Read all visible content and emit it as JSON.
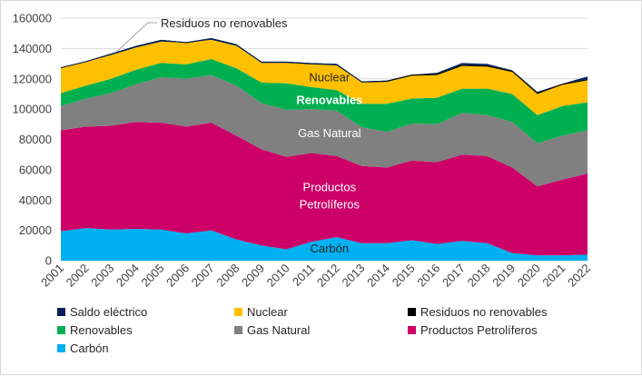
{
  "chart_data": {
    "type": "area",
    "stacked": true,
    "x": [
      2001,
      2002,
      2003,
      2004,
      2005,
      2006,
      2007,
      2008,
      2009,
      2010,
      2011,
      2012,
      2013,
      2014,
      2015,
      2016,
      2017,
      2018,
      2019,
      2020,
      2021,
      2022
    ],
    "x_tick_labels": [
      "2001",
      "2002",
      "2003",
      "2004",
      "2005",
      "2006",
      "2007",
      "2008",
      "2009",
      "2010",
      "2011",
      "2012",
      "2013",
      "2014",
      "2015",
      "2016",
      "2017",
      "2018",
      "2019",
      "2020",
      "2021",
      "2022"
    ],
    "ylim": [
      0,
      160000
    ],
    "y_ticks": [
      0,
      20000,
      40000,
      60000,
      80000,
      100000,
      120000,
      140000,
      160000
    ],
    "y_tick_labels": [
      "0",
      "20000",
      "40000",
      "60000",
      "80000",
      "100000",
      "120000",
      "140000",
      "160000"
    ],
    "gridlines": true,
    "legend_position": "bottom",
    "series": [
      {
        "name": "Carbón",
        "color": "#00b0f0",
        "values": [
          19500,
          21500,
          20500,
          21000,
          20500,
          18000,
          20000,
          14000,
          10000,
          7500,
          12500,
          15500,
          11500,
          11500,
          13500,
          11000,
          13000,
          11500,
          5000,
          3500,
          3500,
          4000
        ]
      },
      {
        "name": "Productos Petrolíferos",
        "color": "#cc0066",
        "values": [
          66500,
          67000,
          68500,
          70500,
          70500,
          70500,
          71000,
          68500,
          63500,
          61000,
          58500,
          53500,
          51000,
          50000,
          52500,
          54000,
          57000,
          57500,
          56500,
          45500,
          50000,
          53500
        ]
      },
      {
        "name": "Gas Natural",
        "color": "#808080",
        "values": [
          16000,
          18500,
          21500,
          25000,
          30000,
          31500,
          31500,
          33000,
          30500,
          31000,
          29000,
          30000,
          25500,
          23500,
          24500,
          25000,
          27500,
          27000,
          30000,
          28500,
          29000,
          28500
        ]
      },
      {
        "name": "Renovables",
        "color": "#00b050",
        "values": [
          8500,
          8500,
          9500,
          9500,
          9500,
          9500,
          10500,
          11500,
          13500,
          17500,
          14500,
          13500,
          15500,
          18500,
          16500,
          17500,
          16000,
          17500,
          18500,
          18500,
          19500,
          18500
        ]
      },
      {
        "name": "Nuclear",
        "color": "#ffc000",
        "values": [
          16500,
          15500,
          16000,
          15000,
          14500,
          14000,
          13000,
          15000,
          13000,
          13500,
          15000,
          16500,
          14000,
          14500,
          15000,
          15000,
          15000,
          14500,
          14500,
          14000,
          14000,
          14500
        ]
      },
      {
        "name": "Residuos no renovables",
        "color": "#000000",
        "values": [
          600,
          600,
          600,
          700,
          700,
          700,
          800,
          800,
          800,
          800,
          800,
          800,
          800,
          800,
          800,
          800,
          800,
          800,
          800,
          800,
          800,
          800
        ]
      },
      {
        "name": "Saldo eléctrico",
        "color": "#002060",
        "values": [
          -300,
          -500,
          -900,
          -1000,
          -1100,
          -300,
          -1000,
          -1000,
          -700,
          -700,
          -500,
          -1000,
          -600,
          -300,
          -100,
          700,
          1100,
          1000,
          300,
          600,
          0,
          1700
        ]
      }
    ],
    "area_labels": [
      {
        "series": "Nuclear",
        "text": "Nuclear",
        "color": "#262626"
      },
      {
        "series": "Renovables",
        "text": "Renovables",
        "color": "#ffffff",
        "bold": true
      },
      {
        "series": "Gas Natural",
        "text": "Gas Natural",
        "color": "#ffffff"
      },
      {
        "series": "Productos Petrolíferos",
        "text": "Productos",
        "color": "#ffffff"
      },
      {
        "series": "Productos Petrolíferos",
        "text": "Petrolíferos",
        "color": "#ffffff"
      },
      {
        "series": "Carbón",
        "text": "Carbón",
        "color": "#262626"
      }
    ],
    "annotations": [
      {
        "text": "Residuos no renovables",
        "points_to": "Residuos no renovables",
        "x": 2003
      }
    ],
    "legend": [
      {
        "label": "Saldo eléctrico",
        "color": "#002060"
      },
      {
        "label": "Nuclear",
        "color": "#ffc000"
      },
      {
        "label": "Residuos no renovables",
        "color": "#000000"
      },
      {
        "label": "Renovables",
        "color": "#00b050"
      },
      {
        "label": "Gas Natural",
        "color": "#808080"
      },
      {
        "label": "Productos Petrolíferos",
        "color": "#cc0066"
      },
      {
        "label": "Carbón",
        "color": "#00b0f0"
      }
    ]
  }
}
